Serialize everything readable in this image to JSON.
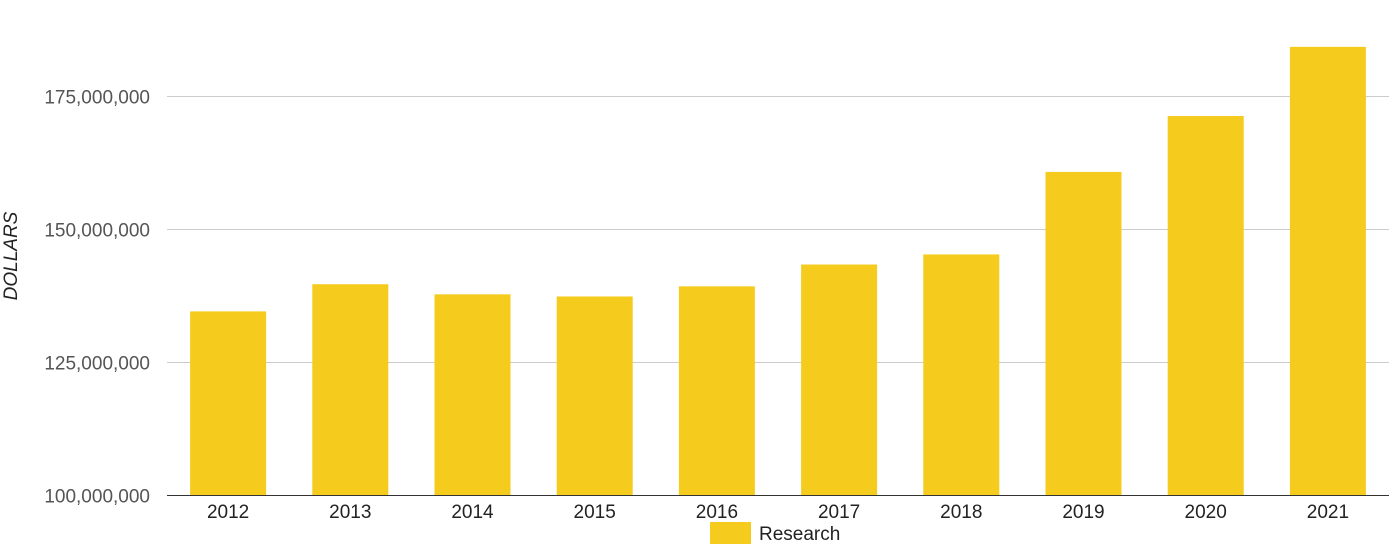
{
  "chart_data": {
    "type": "bar",
    "title": "",
    "xlabel": "",
    "ylabel": "DOLLARS",
    "categories": [
      "2012",
      "2013",
      "2014",
      "2015",
      "2016",
      "2017",
      "2018",
      "2019",
      "2020",
      "2021"
    ],
    "series": [
      {
        "name": "Research",
        "color": "#F5CB1E",
        "values": [
          134500000,
          139600000,
          137700000,
          137300000,
          139200000,
          143300000,
          145200000,
          160700000,
          171200000,
          184200000
        ]
      }
    ],
    "ylim": [
      100000000,
      193000000
    ],
    "yticks": [
      100000000,
      125000000,
      150000000,
      175000000
    ],
    "ytick_labels": [
      "100,000,000",
      "125,000,000",
      "150,000,000",
      "175,000,000"
    ],
    "grid": true,
    "legend_position": "bottom"
  }
}
